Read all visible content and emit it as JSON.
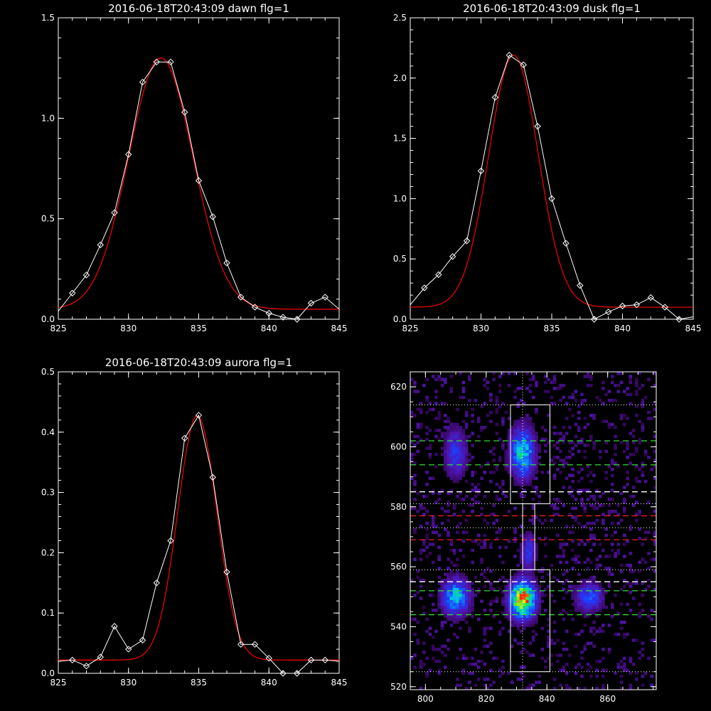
{
  "colors": {
    "background": "#000000",
    "axis": "#ffffff",
    "data_line": "#ffffff",
    "fit_line": "#ff0000",
    "green_dash": "#33dd33",
    "red_dash": "#ee2222",
    "white_dash": "#ffffff"
  },
  "chart_data": [
    {
      "type": "line",
      "title": "2016-06-18T20:43:09 dawn flg=1",
      "xlim": [
        825,
        845
      ],
      "ylim": [
        0,
        1.5
      ],
      "xticks": [
        825,
        830,
        835,
        840,
        845
      ],
      "xtick_labels": [
        "825",
        "830",
        "835",
        "840",
        "845"
      ],
      "yticks": [
        0,
        0.5,
        1.0,
        1.5
      ],
      "ytick_labels": [
        "0.0",
        "0.5",
        "1.0",
        "1.5"
      ],
      "series": [
        {
          "role": "data",
          "marker": "diamond",
          "x": [
            825,
            826,
            827,
            828,
            829,
            830,
            831,
            832,
            833,
            834,
            835,
            836,
            837,
            838,
            839,
            840,
            841,
            842,
            843,
            844,
            845
          ],
          "y": [
            0.04,
            0.13,
            0.22,
            0.37,
            0.53,
            0.82,
            1.18,
            1.28,
            1.28,
            1.03,
            0.69,
            0.51,
            0.28,
            0.11,
            0.06,
            0.03,
            0.01,
            0.0,
            0.08,
            0.11,
            0.05
          ]
        },
        {
          "role": "fit",
          "kind": "gaussian",
          "params": {
            "amp": 1.25,
            "center": 832.3,
            "sigma": 2.3,
            "base": 0.05
          }
        }
      ]
    },
    {
      "type": "line",
      "title": "2016-06-18T20:43:09 dusk flg=1",
      "xlim": [
        825,
        845
      ],
      "ylim": [
        0,
        2.5
      ],
      "xticks": [
        825,
        830,
        835,
        840,
        845
      ],
      "xtick_labels": [
        "825",
        "830",
        "835",
        "840",
        "845"
      ],
      "yticks": [
        0,
        0.5,
        1.0,
        1.5,
        2.0,
        2.5
      ],
      "ytick_labels": [
        "0.0",
        "0.5",
        "1.0",
        "1.5",
        "2.0",
        "2.5"
      ],
      "series": [
        {
          "role": "data",
          "marker": "diamond",
          "x": [
            825,
            826,
            827,
            828,
            829,
            830,
            831,
            832,
            833,
            834,
            835,
            836,
            837,
            838,
            839,
            840,
            841,
            842,
            843,
            844,
            845
          ],
          "y": [
            0.12,
            0.26,
            0.37,
            0.52,
            0.65,
            1.23,
            1.84,
            2.19,
            2.11,
            1.6,
            1.0,
            0.63,
            0.28,
            0.0,
            0.06,
            0.11,
            0.12,
            0.18,
            0.1,
            0.0,
            0.02
          ]
        },
        {
          "role": "fit",
          "kind": "gaussian",
          "params": {
            "amp": 2.09,
            "center": 832.3,
            "sigma": 1.75,
            "base": 0.1
          }
        }
      ]
    },
    {
      "type": "line",
      "title": "2016-06-18T20:43:09 aurora flg=1",
      "xlim": [
        825,
        845
      ],
      "ylim": [
        0,
        0.5
      ],
      "xticks": [
        825,
        830,
        835,
        840,
        845
      ],
      "xtick_labels": [
        "825",
        "830",
        "835",
        "840",
        "845"
      ],
      "yticks": [
        0,
        0.1,
        0.2,
        0.3,
        0.4,
        0.5
      ],
      "ytick_labels": [
        "0.0",
        "0.1",
        "0.2",
        "0.3",
        "0.4",
        "0.5"
      ],
      "series": [
        {
          "role": "data",
          "marker": "diamond",
          "x": [
            825,
            826,
            827,
            828,
            829,
            830,
            831,
            832,
            833,
            834,
            835,
            836,
            837,
            838,
            839,
            840,
            841,
            842,
            843,
            844,
            845
          ],
          "y": [
            0.02,
            0.022,
            0.012,
            0.027,
            0.078,
            0.04,
            0.055,
            0.15,
            0.22,
            0.39,
            0.428,
            0.325,
            0.168,
            0.048,
            0.048,
            0.025,
            0.0,
            0.0,
            0.022,
            0.022,
            0.02
          ]
        },
        {
          "role": "fit",
          "kind": "gaussian",
          "params": {
            "amp": 0.405,
            "center": 834.9,
            "sigma": 1.4,
            "base": 0.022
          }
        }
      ]
    },
    {
      "type": "heatmap",
      "xlim": [
        795,
        876
      ],
      "ylim": [
        519,
        625
      ],
      "xticks": [
        800,
        820,
        840,
        860
      ],
      "xtick_labels": [
        "800",
        "820",
        "840",
        "860"
      ],
      "yticks": [
        520,
        540,
        560,
        580,
        600,
        620
      ],
      "ytick_labels": [
        "520",
        "540",
        "560",
        "580",
        "600",
        "620"
      ],
      "blobs": [
        {
          "x": 832,
          "y": 549,
          "intensity": 1.0,
          "sx": 2.8,
          "sy": 4.0
        },
        {
          "x": 810,
          "y": 550,
          "intensity": 0.55,
          "sx": 3.0,
          "sy": 4.0
        },
        {
          "x": 832,
          "y": 598,
          "intensity": 0.6,
          "sx": 2.6,
          "sy": 5.5
        },
        {
          "x": 854,
          "y": 550,
          "intensity": 0.4,
          "sx": 3.0,
          "sy": 3.0
        },
        {
          "x": 810,
          "y": 598,
          "intensity": 0.3,
          "sx": 2.5,
          "sy": 5.5
        },
        {
          "x": 834,
          "y": 565,
          "intensity": 0.3,
          "sx": 1.5,
          "sy": 4.0
        }
      ],
      "vertical_dotted_x": 832,
      "boxes": [
        {
          "x0": 828,
          "x1": 841,
          "y0": 581,
          "y1": 614
        },
        {
          "x0": 828,
          "x1": 841,
          "y0": 525,
          "y1": 559
        },
        {
          "x0": 832,
          "x1": 836,
          "y0": 559,
          "y1": 581
        }
      ],
      "hlines": [
        {
          "y": 614,
          "style": "dotted",
          "color": "white"
        },
        {
          "y": 602,
          "style": "dashed",
          "color": "green"
        },
        {
          "y": 594,
          "style": "dashed",
          "color": "green"
        },
        {
          "y": 585,
          "style": "dashed",
          "color": "white"
        },
        {
          "y": 581,
          "style": "dotted",
          "color": "white"
        },
        {
          "y": 577,
          "style": "dashed",
          "color": "red"
        },
        {
          "y": 573,
          "style": "dotted",
          "color": "white"
        },
        {
          "y": 569,
          "style": "dashed",
          "color": "red"
        },
        {
          "y": 559,
          "style": "dotted",
          "color": "white"
        },
        {
          "y": 555,
          "style": "dashed",
          "color": "white"
        },
        {
          "y": 552,
          "style": "dashed",
          "color": "green"
        },
        {
          "y": 544,
          "style": "dashed",
          "color": "green"
        },
        {
          "y": 525,
          "style": "dotted",
          "color": "white"
        }
      ]
    }
  ]
}
